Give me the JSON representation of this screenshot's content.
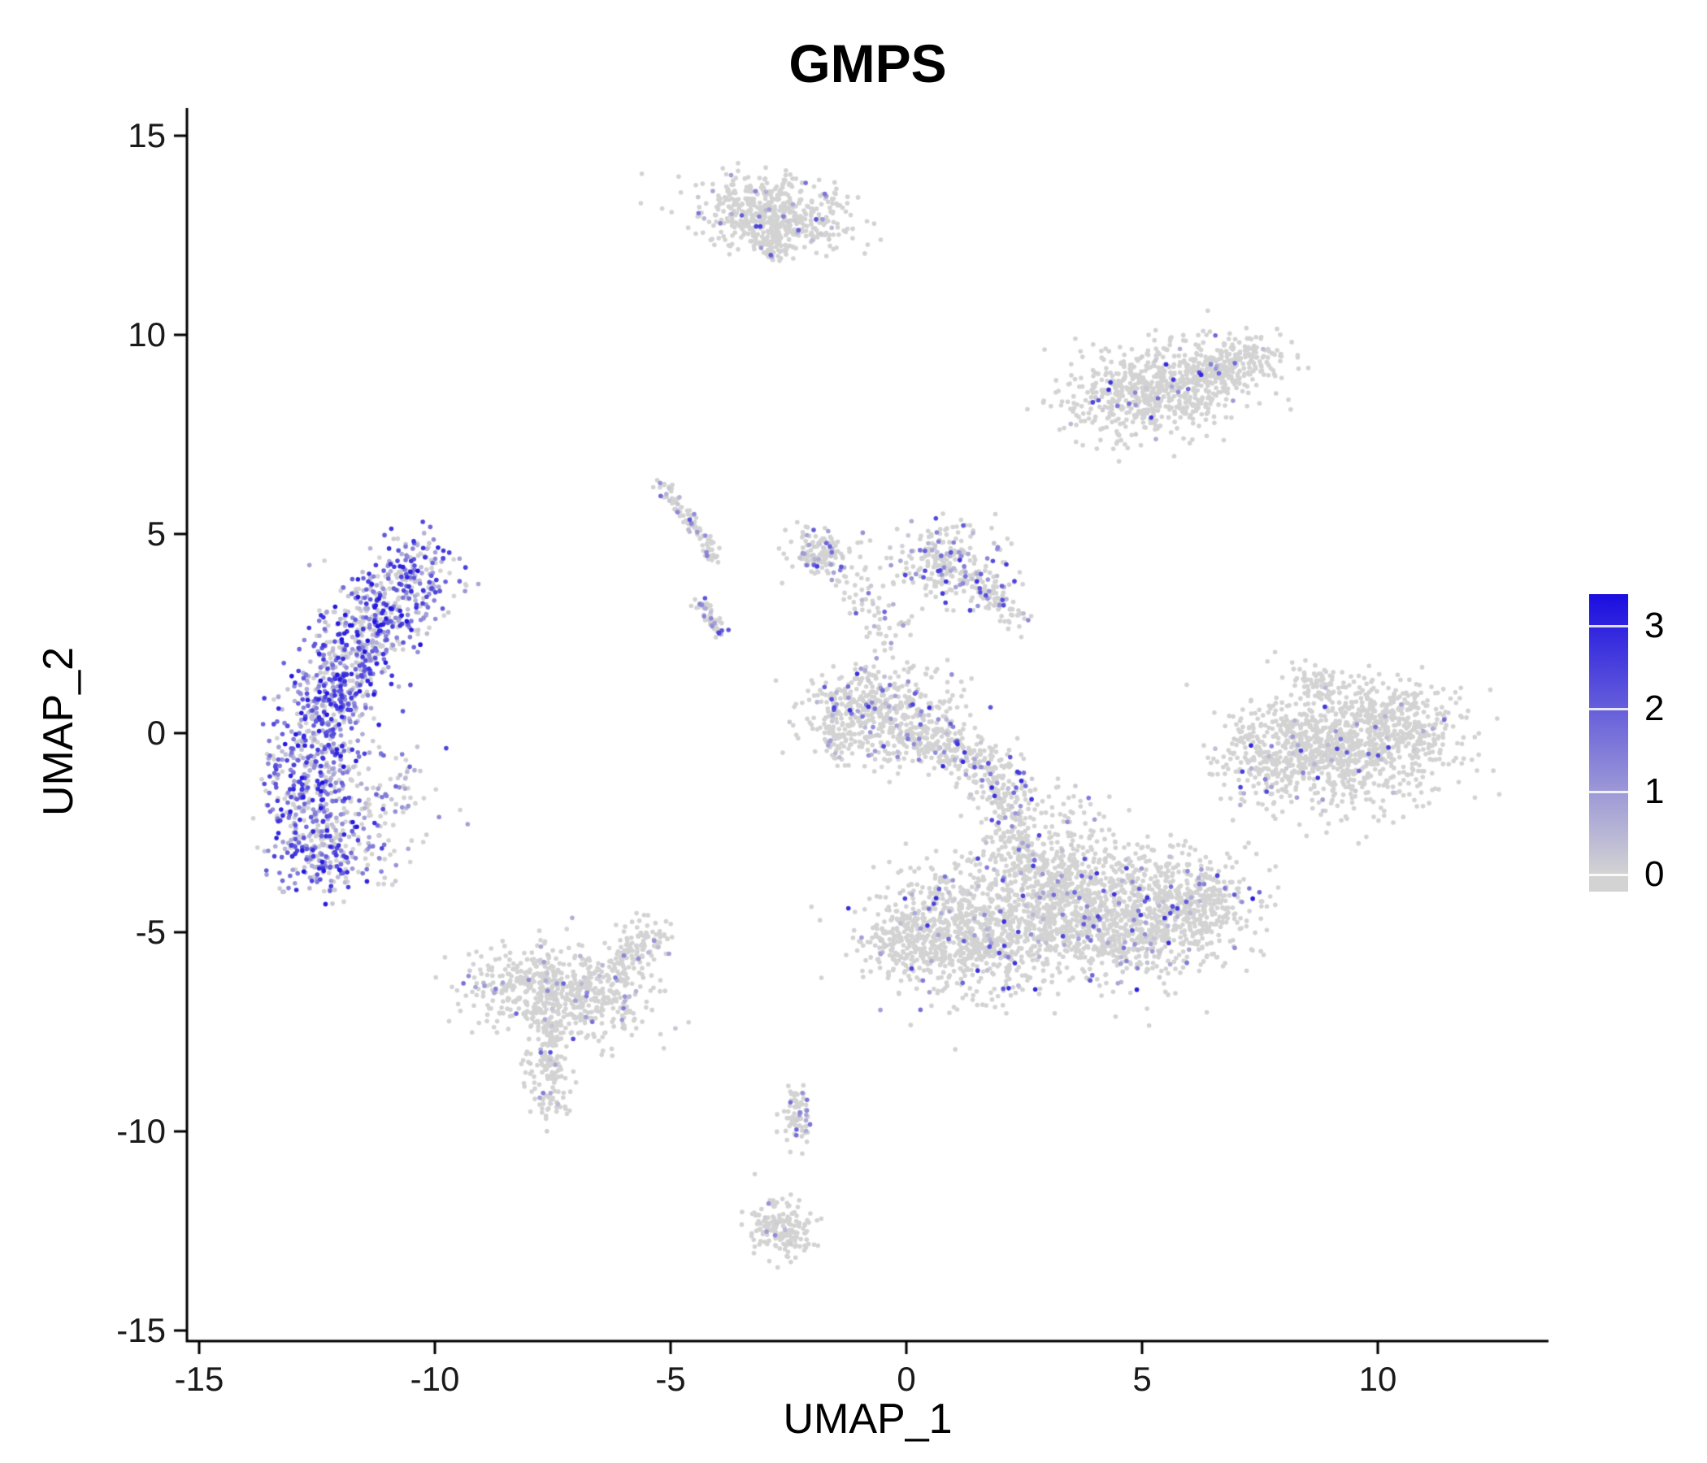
{
  "title": "GMPS",
  "axes": {
    "x_label": "UMAP_1",
    "y_label": "UMAP_2",
    "x_ticks": [
      -15,
      -10,
      -5,
      0,
      5,
      10
    ],
    "y_ticks": [
      -15,
      -10,
      -5,
      0,
      5,
      10,
      15
    ]
  },
  "legend": {
    "labels": [
      "3",
      "2",
      "1",
      "0"
    ],
    "values": [
      3,
      2,
      1,
      0
    ],
    "min_color": "#d3d3d3",
    "max_color": "#1a0de0",
    "value_max": 3.4
  },
  "chart_data": {
    "type": "scatter",
    "title": "GMPS",
    "xlabel": "UMAP_1",
    "ylabel": "UMAP_2",
    "xlim": [
      -16.3,
      14.2
    ],
    "ylim": [
      -15.3,
      15.7
    ],
    "grid": false,
    "legend_position": "right",
    "colorbar": {
      "tick_values": [
        0,
        1,
        2,
        3
      ],
      "range": [
        0,
        3.4
      ],
      "min_color": "#d3d3d3",
      "max_color": "#1a0de0"
    },
    "point_radius_px": 2.8,
    "seed": 42,
    "clusters": [
      {
        "name": "left-crescent",
        "shape": "path",
        "pts": [
          [
            -12.2,
            -3.7
          ],
          [
            -12.55,
            -2.4
          ],
          [
            -12.65,
            -1.0
          ],
          [
            -12.35,
            0.5
          ],
          [
            -11.85,
            1.9
          ],
          [
            -11.1,
            3.1
          ],
          [
            -10.45,
            4.0
          ],
          [
            -10.1,
            4.55
          ]
        ],
        "width": 0.5,
        "n": 1350,
        "expr_frac": 0.82,
        "expr_max": 3.3,
        "expr_pow": 1.3
      },
      {
        "name": "left-crescent-halo",
        "shape": "gauss",
        "cx": -11.3,
        "cy": -2.1,
        "sx": 0.7,
        "sy": 1.0,
        "angle": -20,
        "n": 130,
        "expr_frac": 0.55,
        "expr_max": 2.6,
        "expr_pow": 1.5
      },
      {
        "name": "top-blob",
        "shape": "gauss",
        "cx": -2.9,
        "cy": 13.05,
        "sx": 0.85,
        "sy": 0.42,
        "angle": -7,
        "n": 520,
        "expr_frac": 0.05,
        "expr_max": 2.6,
        "expr_pow": 1.5
      },
      {
        "name": "top-blob-tail",
        "shape": "path",
        "pts": [
          [
            -2.7,
            12.6
          ],
          [
            -2.85,
            12.0
          ]
        ],
        "width": 0.22,
        "n": 70,
        "expr_frac": 0.04,
        "expr_max": 2.0,
        "expr_pow": 2.0
      },
      {
        "name": "topright-blob",
        "shape": "gauss",
        "cx": 5.3,
        "cy": 8.6,
        "sx": 0.95,
        "sy": 0.55,
        "angle": 8,
        "n": 640,
        "expr_frac": 0.05,
        "expr_max": 3.0,
        "expr_pow": 1.6
      },
      {
        "name": "topright-blob-east",
        "shape": "gauss",
        "cx": 6.9,
        "cy": 9.3,
        "sx": 0.55,
        "sy": 0.33,
        "angle": 12,
        "n": 230,
        "expr_frac": 0.05,
        "expr_max": 2.6,
        "expr_pow": 1.6
      },
      {
        "name": "diag-streak-upper",
        "shape": "path",
        "pts": [
          [
            -5.25,
            6.35
          ],
          [
            -4.6,
            5.3
          ],
          [
            -4.0,
            4.35
          ]
        ],
        "width": 0.1,
        "n": 90,
        "expr_frac": 0.3,
        "expr_max": 2.2,
        "expr_pow": 1.5
      },
      {
        "name": "diag-streak-lower",
        "shape": "path",
        "pts": [
          [
            -4.35,
            3.3
          ],
          [
            -3.95,
            2.45
          ]
        ],
        "width": 0.1,
        "n": 55,
        "expr_frac": 0.35,
        "expr_max": 2.6,
        "expr_pow": 1.4
      },
      {
        "name": "mid-left-clump",
        "shape": "gauss",
        "cx": -1.85,
        "cy": 4.55,
        "sx": 0.33,
        "sy": 0.3,
        "angle": 0,
        "n": 130,
        "expr_frac": 0.3,
        "expr_max": 2.6,
        "expr_pow": 1.5
      },
      {
        "name": "mid-right-clump",
        "shape": "gauss",
        "cx": 0.9,
        "cy": 4.35,
        "sx": 0.6,
        "sy": 0.5,
        "angle": -25,
        "n": 240,
        "expr_frac": 0.3,
        "expr_max": 3.0,
        "expr_pow": 1.6
      },
      {
        "name": "mid-right-trail",
        "shape": "path",
        "pts": [
          [
            1.35,
            3.95
          ],
          [
            2.0,
            3.3
          ],
          [
            2.45,
            2.8
          ]
        ],
        "width": 0.18,
        "n": 90,
        "expr_frac": 0.25,
        "expr_max": 2.6,
        "expr_pow": 1.6
      },
      {
        "name": "mid-connector",
        "shape": "path",
        "pts": [
          [
            -1.3,
            4.2
          ],
          [
            -0.6,
            3.3
          ],
          [
            -0.3,
            2.2
          ]
        ],
        "width": 0.28,
        "n": 70,
        "expr_frac": 0.2,
        "expr_max": 2.2,
        "expr_pow": 1.8
      },
      {
        "name": "center-main",
        "shape": "gauss",
        "cx": -0.55,
        "cy": 0.45,
        "sx": 0.8,
        "sy": 0.62,
        "angle": -15,
        "n": 520,
        "expr_frac": 0.14,
        "expr_max": 3.0,
        "expr_pow": 1.7
      },
      {
        "name": "center-band",
        "shape": "path",
        "pts": [
          [
            0.3,
            0.0
          ],
          [
            1.1,
            -0.55
          ],
          [
            1.9,
            -1.05
          ],
          [
            2.35,
            -1.6
          ]
        ],
        "width": 0.32,
        "n": 300,
        "expr_frac": 0.16,
        "expr_max": 3.0,
        "expr_pow": 1.7
      },
      {
        "name": "center-vstreak",
        "shape": "path",
        "pts": [
          [
            -1.55,
            1.05
          ],
          [
            -1.5,
            -0.6
          ]
        ],
        "width": 0.09,
        "n": 60,
        "expr_frac": 0.18,
        "expr_max": 2.4,
        "expr_pow": 1.6
      },
      {
        "name": "right-main",
        "shape": "gauss",
        "cx": 9.3,
        "cy": -0.35,
        "sx": 1.1,
        "sy": 0.75,
        "angle": 4,
        "n": 950,
        "expr_frac": 0.04,
        "expr_max": 3.0,
        "expr_pow": 1.4
      },
      {
        "name": "right-west-lobe",
        "shape": "gauss",
        "cx": 7.85,
        "cy": -0.7,
        "sx": 0.5,
        "sy": 0.55,
        "angle": 0,
        "n": 180,
        "expr_frac": 0.05,
        "expr_max": 2.6,
        "expr_pow": 1.5
      },
      {
        "name": "right-east-lobe",
        "shape": "gauss",
        "cx": 10.6,
        "cy": 0.3,
        "sx": 0.55,
        "sy": 0.45,
        "angle": 10,
        "n": 170,
        "expr_frac": 0.04,
        "expr_max": 2.6,
        "expr_pow": 1.5
      },
      {
        "name": "right-north-tip",
        "shape": "gauss",
        "cx": 8.75,
        "cy": 1.3,
        "sx": 0.3,
        "sy": 0.22,
        "angle": 0,
        "n": 60,
        "expr_frac": 0.05,
        "expr_max": 2.0,
        "expr_pow": 1.6
      },
      {
        "name": "bottom-west",
        "shape": "gauss",
        "cx": 1.4,
        "cy": -5.0,
        "sx": 1.05,
        "sy": 0.8,
        "angle": -8,
        "n": 850,
        "expr_frac": 0.08,
        "expr_max": 3.0,
        "expr_pow": 1.7
      },
      {
        "name": "bottom-mid",
        "shape": "gauss",
        "cx": 3.3,
        "cy": -4.1,
        "sx": 0.85,
        "sy": 0.75,
        "angle": 0,
        "n": 550,
        "expr_frac": 0.08,
        "expr_max": 3.0,
        "expr_pow": 1.7
      },
      {
        "name": "bottom-east",
        "shape": "gauss",
        "cx": 5.0,
        "cy": -4.6,
        "sx": 1.0,
        "sy": 0.85,
        "angle": 5,
        "n": 850,
        "expr_frac": 0.1,
        "expr_max": 3.2,
        "expr_pow": 1.6
      },
      {
        "name": "bottom-east-tip",
        "shape": "gauss",
        "cx": 6.3,
        "cy": -4.3,
        "sx": 0.5,
        "sy": 0.55,
        "angle": 0,
        "n": 180,
        "expr_frac": 0.08,
        "expr_max": 2.6,
        "expr_pow": 1.6
      },
      {
        "name": "bottom-west-tip",
        "shape": "gauss",
        "cx": -0.05,
        "cy": -5.3,
        "sx": 0.45,
        "sy": 0.42,
        "angle": 0,
        "n": 150,
        "expr_frac": 0.06,
        "expr_max": 2.4,
        "expr_pow": 1.7
      },
      {
        "name": "bottom-neck",
        "shape": "path",
        "pts": [
          [
            2.15,
            -1.9
          ],
          [
            2.35,
            -2.7
          ],
          [
            2.6,
            -3.4
          ]
        ],
        "width": 0.3,
        "n": 130,
        "expr_frac": 0.12,
        "expr_max": 2.6,
        "expr_pow": 1.7
      },
      {
        "name": "center-bottom-scatter",
        "shape": "gauss",
        "cx": 3.4,
        "cy": -2.4,
        "sx": 0.75,
        "sy": 0.55,
        "angle": -20,
        "n": 90,
        "expr_frac": 0.1,
        "expr_max": 2.6,
        "expr_pow": 1.7
      },
      {
        "name": "bottomleft-main",
        "shape": "gauss",
        "cx": -7.35,
        "cy": -6.5,
        "sx": 0.95,
        "sy": 0.58,
        "angle": -10,
        "n": 620,
        "expr_frac": 0.07,
        "expr_max": 2.4,
        "expr_pow": 1.7
      },
      {
        "name": "bottomleft-tail",
        "shape": "path",
        "pts": [
          [
            -6.3,
            -5.95
          ],
          [
            -5.6,
            -5.3
          ],
          [
            -5.2,
            -4.85
          ]
        ],
        "width": 0.28,
        "n": 120,
        "expr_frac": 0.08,
        "expr_max": 2.2,
        "expr_pow": 1.7
      },
      {
        "name": "bottomleft-drip",
        "shape": "path",
        "pts": [
          [
            -7.5,
            -7.2
          ],
          [
            -7.6,
            -7.9
          ]
        ],
        "width": 0.14,
        "n": 45,
        "expr_frac": 0.08,
        "expr_max": 2.0,
        "expr_pow": 1.7
      },
      {
        "name": "bottomleft-clump-a",
        "shape": "gauss",
        "cx": -7.6,
        "cy": -8.4,
        "sx": 0.28,
        "sy": 0.3,
        "angle": 0,
        "n": 80,
        "expr_frac": 0.12,
        "expr_max": 2.4,
        "expr_pow": 1.5
      },
      {
        "name": "bottomleft-clump-b",
        "shape": "gauss",
        "cx": -7.5,
        "cy": -9.3,
        "sx": 0.18,
        "sy": 0.22,
        "angle": 0,
        "n": 40,
        "expr_frac": 0.06,
        "expr_max": 1.6,
        "expr_pow": 1.7
      },
      {
        "name": "small-mid-bottom",
        "shape": "gauss",
        "cx": -2.3,
        "cy": -9.6,
        "sx": 0.16,
        "sy": 0.38,
        "angle": 0,
        "n": 75,
        "expr_frac": 0.18,
        "expr_max": 2.2,
        "expr_pow": 1.4
      },
      {
        "name": "bottom-small",
        "shape": "gauss",
        "cx": -2.6,
        "cy": -12.45,
        "sx": 0.33,
        "sy": 0.42,
        "angle": 25,
        "n": 170,
        "expr_frac": 0.04,
        "expr_max": 1.6,
        "expr_pow": 1.8
      }
    ]
  }
}
